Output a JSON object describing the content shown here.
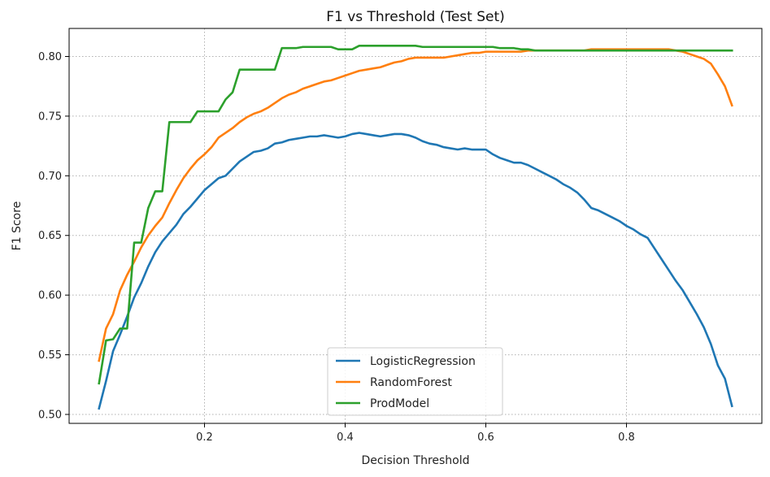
{
  "chart_data": {
    "type": "line",
    "title": "F1 vs Threshold (Test Set)",
    "xlabel": "Decision Threshold",
    "ylabel": "F1 Score",
    "xlim": [
      0.0075,
      0.9925
    ],
    "ylim": [
      0.4925,
      0.8235
    ],
    "xticks": [
      0.2,
      0.4,
      0.6,
      0.8
    ],
    "xtick_labels": [
      "0.2",
      "0.4",
      "0.6",
      "0.8"
    ],
    "yticks": [
      0.5,
      0.55,
      0.6,
      0.65,
      0.7,
      0.75,
      0.8
    ],
    "ytick_labels": [
      "0.50",
      "0.55",
      "0.60",
      "0.65",
      "0.70",
      "0.75",
      "0.80"
    ],
    "grid": true,
    "legend_position": "bottom-center",
    "x": [
      0.05,
      0.06,
      0.07,
      0.08,
      0.09,
      0.1,
      0.11,
      0.12,
      0.13,
      0.14,
      0.15,
      0.16,
      0.17,
      0.18,
      0.19,
      0.2,
      0.21,
      0.22,
      0.23,
      0.24,
      0.25,
      0.26,
      0.27,
      0.28,
      0.29,
      0.3,
      0.31,
      0.32,
      0.33,
      0.34,
      0.35,
      0.36,
      0.37,
      0.38,
      0.39,
      0.4,
      0.41,
      0.42,
      0.43,
      0.44,
      0.45,
      0.46,
      0.47,
      0.48,
      0.49,
      0.5,
      0.51,
      0.52,
      0.53,
      0.54,
      0.55,
      0.56,
      0.57,
      0.58,
      0.59,
      0.6,
      0.61,
      0.62,
      0.63,
      0.64,
      0.65,
      0.66,
      0.67,
      0.68,
      0.69,
      0.7,
      0.71,
      0.72,
      0.73,
      0.74,
      0.75,
      0.76,
      0.77,
      0.78,
      0.79,
      0.8,
      0.81,
      0.82,
      0.83,
      0.84,
      0.85,
      0.86,
      0.87,
      0.88,
      0.89,
      0.9,
      0.91,
      0.92,
      0.93,
      0.94,
      0.95
    ],
    "series": [
      {
        "name": "LogisticRegression",
        "color": "#1f77b4",
        "values": [
          0.505,
          0.528,
          0.553,
          0.567,
          0.582,
          0.598,
          0.61,
          0.624,
          0.636,
          0.645,
          0.652,
          0.659,
          0.668,
          0.674,
          0.681,
          0.688,
          0.693,
          0.698,
          0.7,
          0.706,
          0.712,
          0.716,
          0.72,
          0.721,
          0.723,
          0.727,
          0.728,
          0.73,
          0.731,
          0.732,
          0.733,
          0.733,
          0.734,
          0.733,
          0.732,
          0.733,
          0.735,
          0.736,
          0.735,
          0.734,
          0.733,
          0.734,
          0.735,
          0.735,
          0.734,
          0.732,
          0.729,
          0.727,
          0.726,
          0.724,
          0.723,
          0.722,
          0.723,
          0.722,
          0.722,
          0.722,
          0.718,
          0.715,
          0.713,
          0.711,
          0.711,
          0.709,
          0.706,
          0.703,
          0.7,
          0.697,
          0.693,
          0.69,
          0.686,
          0.68,
          0.673,
          0.671,
          0.668,
          0.665,
          0.662,
          0.658,
          0.655,
          0.651,
          0.648,
          0.639,
          0.63,
          0.621,
          0.612,
          0.604,
          0.594,
          0.584,
          0.573,
          0.559,
          0.541,
          0.53,
          0.507
        ]
      },
      {
        "name": "RandomForest",
        "color": "#ff7f0e",
        "values": [
          0.545,
          0.572,
          0.584,
          0.604,
          0.617,
          0.628,
          0.64,
          0.65,
          0.658,
          0.665,
          0.677,
          0.688,
          0.698,
          0.706,
          0.713,
          0.718,
          0.724,
          0.732,
          0.736,
          0.74,
          0.745,
          0.749,
          0.752,
          0.754,
          0.757,
          0.761,
          0.765,
          0.768,
          0.77,
          0.773,
          0.775,
          0.777,
          0.779,
          0.78,
          0.782,
          0.784,
          0.786,
          0.788,
          0.789,
          0.79,
          0.791,
          0.793,
          0.795,
          0.796,
          0.798,
          0.799,
          0.799,
          0.799,
          0.799,
          0.799,
          0.8,
          0.801,
          0.802,
          0.803,
          0.803,
          0.804,
          0.804,
          0.804,
          0.804,
          0.804,
          0.804,
          0.805,
          0.805,
          0.805,
          0.805,
          0.805,
          0.805,
          0.805,
          0.805,
          0.805,
          0.806,
          0.806,
          0.806,
          0.806,
          0.806,
          0.806,
          0.806,
          0.806,
          0.806,
          0.806,
          0.806,
          0.806,
          0.805,
          0.804,
          0.802,
          0.8,
          0.798,
          0.794,
          0.785,
          0.775,
          0.759
        ]
      },
      {
        "name": "ProdModel",
        "color": "#2ca02c",
        "values": [
          0.526,
          0.562,
          0.563,
          0.572,
          0.572,
          0.644,
          0.644,
          0.673,
          0.687,
          0.687,
          0.745,
          0.745,
          0.745,
          0.745,
          0.754,
          0.754,
          0.754,
          0.754,
          0.764,
          0.77,
          0.789,
          0.789,
          0.789,
          0.789,
          0.789,
          0.789,
          0.807,
          0.807,
          0.807,
          0.808,
          0.808,
          0.808,
          0.808,
          0.808,
          0.806,
          0.806,
          0.806,
          0.809,
          0.809,
          0.809,
          0.809,
          0.809,
          0.809,
          0.809,
          0.809,
          0.809,
          0.808,
          0.808,
          0.808,
          0.808,
          0.808,
          0.808,
          0.808,
          0.808,
          0.808,
          0.808,
          0.808,
          0.807,
          0.807,
          0.807,
          0.806,
          0.806,
          0.805,
          0.805,
          0.805,
          0.805,
          0.805,
          0.805,
          0.805,
          0.805,
          0.805,
          0.805,
          0.805,
          0.805,
          0.805,
          0.805,
          0.805,
          0.805,
          0.805,
          0.805,
          0.805,
          0.805,
          0.805,
          0.805,
          0.805,
          0.805,
          0.805,
          0.805,
          0.805,
          0.805,
          0.805
        ]
      }
    ]
  }
}
